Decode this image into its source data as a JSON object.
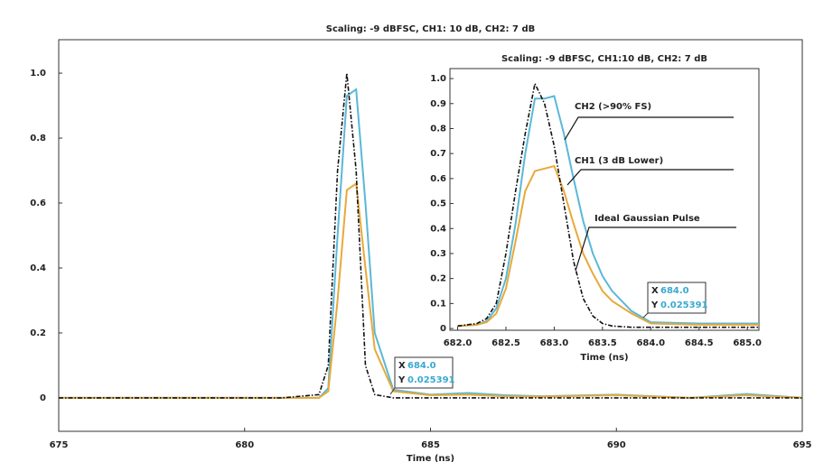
{
  "chart_data": [
    {
      "type": "line",
      "title": "Scaling: -9 dBFSC, CH1: 10 dB, CH2: 7 dB",
      "xlabel": "Time (ns)",
      "x": [
        675,
        677,
        679,
        681,
        682,
        682.25,
        682.5,
        682.75,
        683,
        683.25,
        683.5,
        684,
        685,
        686,
        687,
        688,
        690,
        692,
        693.5,
        695
      ],
      "series": [
        {
          "name": "CH2 (>90% FS)",
          "color": "#5bb8d6",
          "dash": false,
          "values": [
            0,
            0,
            0,
            0,
            0,
            0.03,
            0.5,
            0.93,
            0.95,
            0.6,
            0.2,
            0.025,
            0.01,
            0.015,
            0.008,
            0.005,
            0.01,
            0,
            0.012,
            0
          ]
        },
        {
          "name": "CH1 (3 dB Lower)",
          "color": "#e8a93a",
          "dash": false,
          "values": [
            0,
            0,
            0,
            0,
            0,
            0.02,
            0.3,
            0.64,
            0.66,
            0.4,
            0.15,
            0.02,
            0.008,
            0.01,
            0.005,
            0.004,
            0.008,
            0,
            0.008,
            0
          ]
        },
        {
          "name": "Ideal Gaussian Pulse",
          "color": "#111111",
          "dash": true,
          "values": [
            0,
            0,
            0,
            0,
            0.01,
            0.1,
            0.7,
            1.0,
            0.7,
            0.1,
            0.01,
            0,
            0,
            0,
            0,
            0,
            0,
            0,
            0,
            0
          ]
        }
      ],
      "xlim": [
        675,
        695
      ],
      "xticks": [
        675,
        680,
        685,
        690,
        695
      ],
      "ylim": [
        -0.103,
        1.103
      ],
      "yticks": [
        0,
        0.2,
        0.4,
        0.6,
        0.8,
        {
          "value": 1,
          "label": "1.0"
        }
      ],
      "annotation": {
        "x_label": "X",
        "x_value": "684.0",
        "y_label": "Y",
        "y_value": "0.025391"
      }
    },
    {
      "type": "line",
      "title": "Scaling: -9 dBFSC, CH1:10 dB, CH2: 7 dB",
      "xlabel": "Time (ns)",
      "x": [
        682.0,
        682.2,
        682.3,
        682.4,
        682.5,
        682.6,
        682.7,
        682.8,
        682.9,
        683.0,
        683.1,
        683.2,
        683.3,
        683.4,
        683.5,
        683.6,
        683.8,
        684.0,
        684.5,
        685.0,
        685.12
      ],
      "series": [
        {
          "name": "CH2 (>90% FS)",
          "color": "#5bb8d6",
          "dash": false,
          "values": [
            0.01,
            0.015,
            0.03,
            0.08,
            0.2,
            0.42,
            0.7,
            0.92,
            0.92,
            0.93,
            0.78,
            0.6,
            0.43,
            0.3,
            0.21,
            0.15,
            0.07,
            0.025,
            0.02,
            0.02,
            0.02
          ]
        },
        {
          "name": "CH1 (3 dB Lower)",
          "color": "#e8a93a",
          "dash": false,
          "values": [
            0.01,
            0.015,
            0.025,
            0.06,
            0.16,
            0.35,
            0.55,
            0.63,
            0.64,
            0.65,
            0.55,
            0.42,
            0.3,
            0.22,
            0.15,
            0.11,
            0.06,
            0.02,
            0.015,
            0.015,
            0.015
          ]
        },
        {
          "name": "Ideal Gaussian Pulse",
          "color": "#111111",
          "dash": true,
          "values": [
            0.01,
            0.02,
            0.04,
            0.1,
            0.3,
            0.55,
            0.78,
            0.98,
            0.9,
            0.73,
            0.5,
            0.27,
            0.12,
            0.05,
            0.02,
            0.01,
            0.005,
            0.005,
            0.005,
            0.005,
            0.005
          ]
        }
      ],
      "xlim": [
        681.92,
        685.12
      ],
      "xticks": [
        {
          "value": 682,
          "label": "682.0"
        },
        682.5,
        {
          "value": 683,
          "label": "683.0"
        },
        683.5,
        {
          "value": 684,
          "label": "684.0"
        },
        684.5,
        {
          "value": 685,
          "label": "685.0"
        }
      ],
      "ylim": [
        -0.007,
        1.04
      ],
      "yticks": [
        0,
        0.1,
        0.2,
        0.3,
        0.4,
        0.5,
        0.6,
        0.7,
        0.8,
        0.9,
        {
          "value": 1,
          "label": "1.0"
        }
      ],
      "annotation": {
        "x_label": "X",
        "x_value": "684.0",
        "y_label": "Y",
        "y_value": "0.025391"
      }
    }
  ]
}
